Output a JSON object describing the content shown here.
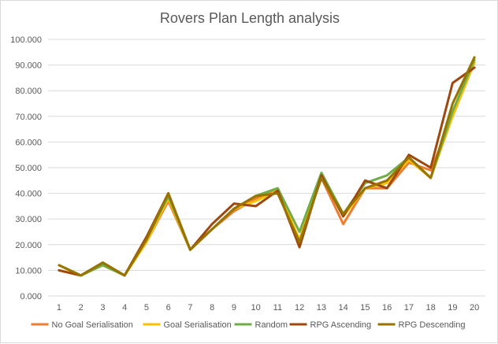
{
  "chart_data": {
    "type": "line",
    "title": "Rovers Plan Length analysis",
    "xlabel": "",
    "ylabel": "",
    "categories": [
      "1",
      "2",
      "3",
      "4",
      "5",
      "6",
      "7",
      "8",
      "9",
      "10",
      "11",
      "12",
      "13",
      "14",
      "15",
      "16",
      "17",
      "18",
      "19",
      "20"
    ],
    "ylim": [
      0,
      100
    ],
    "yticks": [
      "0.000",
      "10.000",
      "20.000",
      "30.000",
      "40.000",
      "50.000",
      "60.000",
      "70.000",
      "80.000",
      "90.000",
      "100.000"
    ],
    "grid": true,
    "legend_position": "bottom",
    "series": [
      {
        "name": "No Goal Serialisation",
        "color": "#ed7d31",
        "values": [
          10,
          8,
          12,
          8,
          21,
          37,
          18,
          26,
          33,
          38,
          41,
          22,
          46,
          28,
          42,
          42,
          52,
          49,
          70,
          91
        ]
      },
      {
        "name": "Goal Serialisation",
        "color": "#ffc000",
        "values": [
          10,
          8,
          12,
          8,
          21,
          38,
          18,
          26,
          34,
          37,
          41,
          22,
          47,
          31,
          42,
          44,
          53,
          46,
          70,
          91
        ]
      },
      {
        "name": "Random",
        "color": "#70ad47",
        "values": [
          12,
          8,
          12,
          8,
          22,
          39,
          18,
          26,
          34,
          39,
          42,
          25,
          48,
          32,
          44,
          47,
          54,
          46,
          72,
          92
        ]
      },
      {
        "name": "RPG Ascending",
        "color": "#9e480e",
        "values": [
          10,
          8,
          13,
          8,
          23,
          40,
          18,
          28,
          36,
          35,
          41,
          19,
          47,
          31,
          45,
          42,
          55,
          50,
          83,
          89
        ]
      },
      {
        "name": "RPG Descending",
        "color": "#997300",
        "values": [
          12,
          8,
          13,
          8,
          22,
          40,
          18,
          26,
          34,
          39,
          40,
          21,
          46,
          32,
          42,
          45,
          54,
          46,
          75,
          93
        ]
      }
    ]
  }
}
